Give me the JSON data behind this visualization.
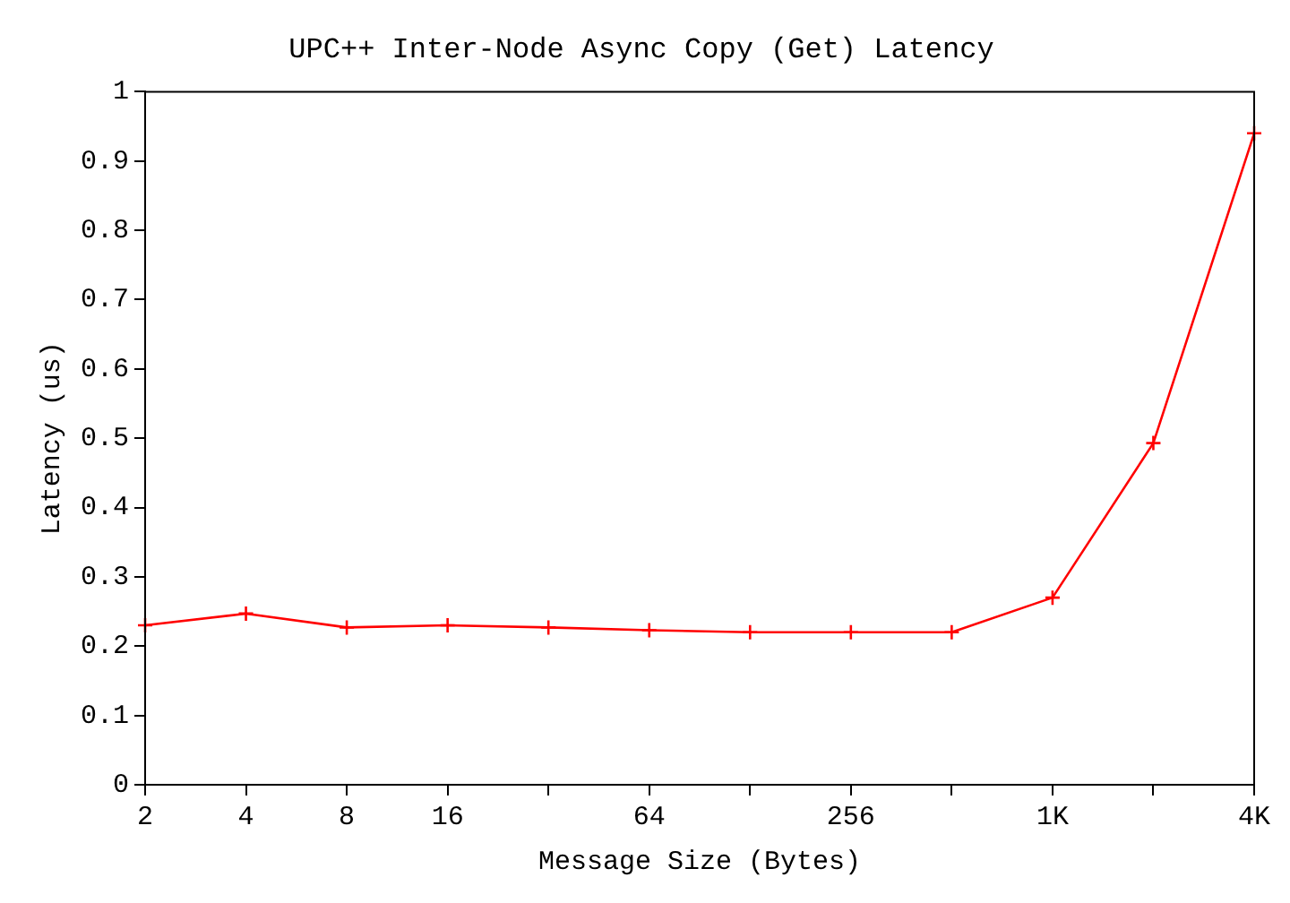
{
  "chart_data": {
    "type": "line",
    "title": "UPC++ Inter-Node Async Copy (Get) Latency",
    "xlabel": "Message Size (Bytes)",
    "ylabel": "Latency (us)",
    "categories": [
      "2",
      "4",
      "8",
      "16",
      null,
      "64",
      null,
      "256",
      null,
      "1K",
      null,
      "4K"
    ],
    "series": [
      {
        "color": "#ff0000",
        "values": [
          0.23,
          0.247,
          0.227,
          0.23,
          0.227,
          0.223,
          0.22,
          0.22,
          0.22,
          0.27,
          0.493,
          0.94
        ]
      }
    ],
    "ylim": [
      0,
      1
    ],
    "yticks": [
      0,
      0.1,
      0.2,
      0.3,
      0.4,
      0.5,
      0.6,
      0.7,
      0.8,
      0.9,
      1
    ],
    "grid": false,
    "marker": "cross",
    "line_style": "solid"
  }
}
